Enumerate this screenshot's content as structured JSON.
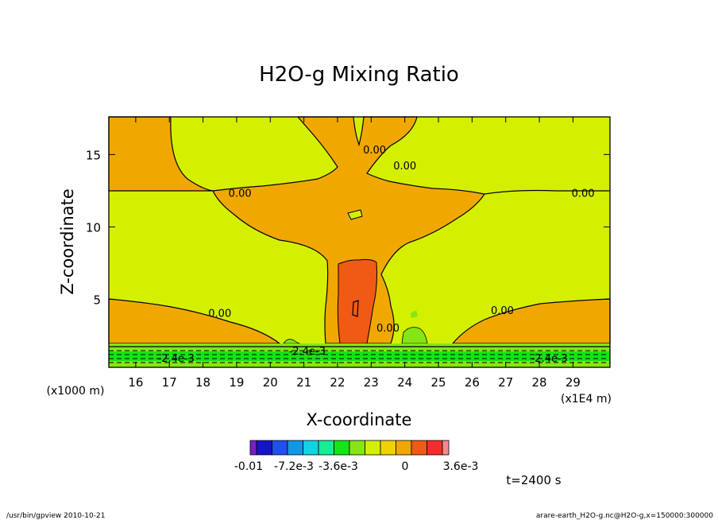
{
  "chart_data": {
    "type": "contour",
    "title": "H2O-g Mixing Ratio",
    "xlabel": "X-coordinate",
    "ylabel": "Z-coordinate",
    "x_unit_left": "(x1000 m)",
    "x_unit_right": "(x1E4 m)",
    "xlim": [
      15.2,
      30.1
    ],
    "ylim": [
      0.3,
      17.6
    ],
    "x_ticks": [
      16,
      17,
      18,
      19,
      20,
      21,
      22,
      23,
      24,
      25,
      26,
      27,
      28,
      29
    ],
    "y_ticks": [
      5,
      10,
      15
    ],
    "contour_labels": [
      {
        "text": "0.00",
        "x": 19.1,
        "y": 12.3
      },
      {
        "text": "0.00",
        "x": 29.3,
        "y": 12.3
      },
      {
        "text": "0.00",
        "x": 23.1,
        "y": 15.3
      },
      {
        "text": "0.00",
        "x": 24.0,
        "y": 14.2
      },
      {
        "text": "0.00",
        "x": 18.5,
        "y": 4.0
      },
      {
        "text": "0.00",
        "x": 26.9,
        "y": 4.2
      },
      {
        "text": "0.00",
        "x": 23.5,
        "y": 3.0
      },
      {
        "text": "-2.4e-3",
        "x": 17.2,
        "y": 0.9
      },
      {
        "text": "-2.4e-3",
        "x": 21.1,
        "y": 1.4
      },
      {
        "text": "-2.4e-3",
        "x": 28.3,
        "y": 0.9
      }
    ],
    "colorbar": {
      "colors": [
        "#7a1fbf",
        "#1414c8",
        "#2050ee",
        "#1496e6",
        "#14d2e6",
        "#14ee96",
        "#14e614",
        "#86e614",
        "#d4f000",
        "#f0d200",
        "#f0a800",
        "#f05a14",
        "#f52c2c",
        "#f08c8c"
      ],
      "labels": [
        "-0.01",
        "-7.2e-3",
        "-3.6e-3",
        "0",
        "3.6e-3"
      ]
    },
    "time_label": "t=2400 s"
  },
  "footer": {
    "left": "/usr/bin/gpview  2010-10-21",
    "right": "arare-earth_H2O-g.nc@H2O-g,x=150000:300000"
  },
  "colors": {
    "background_field": "#d4f000",
    "positive_region": "#f0a800",
    "core_region": "#f05a14",
    "green_region": "#86e614",
    "surface_band": "#14e614",
    "contour_line": "#000000"
  }
}
